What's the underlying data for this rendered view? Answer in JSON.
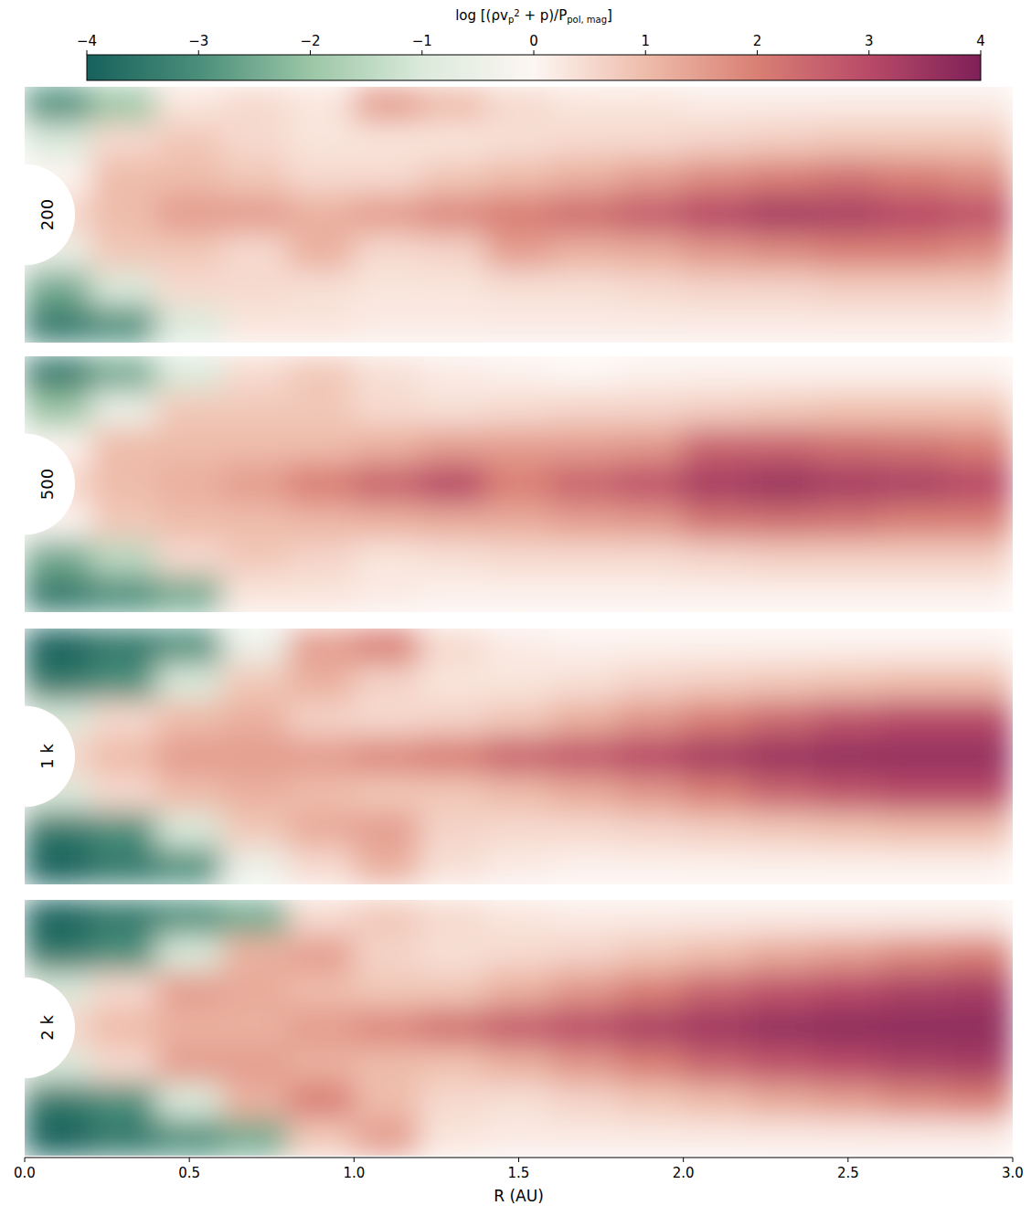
{
  "chart_data": {
    "type": "heatmap",
    "xlabel": "R (AU)",
    "xlim": [
      0,
      3
    ],
    "ylim": [
      -0.39,
      0.39
    ],
    "xticks": [
      {
        "value": 0,
        "label": "0.0"
      },
      {
        "value": 0.5,
        "label": "0.5"
      },
      {
        "value": 1,
        "label": "1.0"
      },
      {
        "value": 1.5,
        "label": "1.5"
      },
      {
        "value": 2,
        "label": "2.0"
      },
      {
        "value": 2.5,
        "label": "2.5"
      },
      {
        "value": 3,
        "label": "3.0"
      }
    ],
    "tick_labels": "x",
    "x_edges": [
      0,
      0.2,
      0.4,
      0.6,
      0.8,
      1.0,
      1.2,
      1.4,
      1.6,
      1.8,
      2.0,
      2.2,
      2.4,
      2.6,
      2.8,
      3.0
    ],
    "y_edges": [
      0.39,
      0.28,
      0.17,
      0.06,
      -0.06,
      -0.17,
      -0.28,
      -0.39
    ],
    "colorbar": {
      "label": [
        "log [(ρv",
        "p",
        "2",
        " + p)/P",
        "pol, mag",
        "]"
      ],
      "range": [
        -4,
        4
      ],
      "ticks": [
        {
          "value": -4,
          "label": "−4"
        },
        {
          "value": -3,
          "label": "−3"
        },
        {
          "value": -2,
          "label": "−2"
        },
        {
          "value": -1,
          "label": "−1"
        },
        0,
        1,
        2,
        3,
        4
      ]
    },
    "panels": [
      {
        "label": "200",
        "values": [
          [
            -3,
            -2,
            0.3,
            0.5,
            0.3,
            1.5,
            1,
            0.5,
            0.3,
            0.3,
            0.2,
            0.2,
            0.2,
            0.2,
            0.2
          ],
          [
            -1,
            0.5,
            0.8,
            0.5,
            0.3,
            0.3,
            0.3,
            0.4,
            0.5,
            0.5,
            0.6,
            0.7,
            0.8,
            0.8,
            0.8
          ],
          [
            0,
            1.0,
            1.0,
            0.8,
            0.5,
            0.5,
            0.8,
            1.0,
            1.2,
            1.5,
            1.8,
            2.0,
            2.2,
            2.0,
            1.8
          ],
          [
            0.5,
            1.0,
            1.5,
            1.5,
            1.2,
            1.5,
            1.8,
            2.0,
            2.3,
            2.6,
            3.0,
            3.3,
            3.2,
            3.0,
            2.8
          ],
          [
            -0.5,
            0.8,
            0.8,
            0.5,
            1.2,
            0.5,
            0.6,
            1.5,
            1.2,
            1.3,
            1.6,
            1.8,
            2.0,
            2.0,
            1.8
          ],
          [
            -2.5,
            -1,
            0.5,
            0.5,
            0.4,
            0.3,
            0.3,
            0.4,
            0.4,
            0.5,
            0.6,
            0.6,
            0.7,
            0.7,
            0.7
          ],
          [
            -3.5,
            -3,
            -1,
            0.3,
            0.3,
            0.2,
            0.2,
            0.2,
            0.2,
            0.2,
            0.2,
            0.2,
            0.2,
            0.2,
            0.2
          ]
        ]
      },
      {
        "label": "500",
        "values": [
          [
            -3.5,
            -2.5,
            -1,
            0.5,
            0.8,
            0.4,
            0.2,
            0.1,
            0,
            0.1,
            0.1,
            0.1,
            0.1,
            0.1,
            0.1
          ],
          [
            -2,
            -0.5,
            0.8,
            0.8,
            0.8,
            0.5,
            0.4,
            0.5,
            0.6,
            0.6,
            0.7,
            0.8,
            0.9,
            0.9,
            0.9
          ],
          [
            0,
            1,
            1,
            1,
            1,
            1.2,
            1.5,
            1.5,
            1.5,
            1.6,
            2.5,
            2.5,
            2.3,
            2.2,
            2.0
          ],
          [
            0.5,
            1,
            1.2,
            1.5,
            2,
            2.5,
            3.0,
            2.0,
            2.5,
            2.8,
            3.3,
            3.5,
            3.3,
            3.2,
            3.0
          ],
          [
            0,
            0.8,
            1,
            1,
            1.1,
            1.2,
            1.3,
            1.3,
            1.5,
            1.6,
            2.2,
            2.3,
            2.2,
            2.0,
            2.0
          ],
          [
            -2.5,
            -1.5,
            0.5,
            0.8,
            0.6,
            0.3,
            0.4,
            0.5,
            0.5,
            0.5,
            0.6,
            0.7,
            0.7,
            0.7,
            0.7
          ],
          [
            -3.5,
            -3,
            -2.5,
            0.3,
            0.3,
            0.2,
            0.1,
            0.1,
            0.1,
            0.1,
            0.1,
            0.1,
            0.1,
            0.1,
            0.1
          ]
        ]
      },
      {
        "label": "1 k",
        "values": [
          [
            -4,
            -3.5,
            -3,
            -0.5,
            1.5,
            2.0,
            0.5,
            0.2,
            0.1,
            0.1,
            0.1,
            0.1,
            0.1,
            0.1,
            0.1
          ],
          [
            -3.5,
            -3,
            -1,
            0.8,
            1.2,
            0.6,
            0.3,
            0.3,
            0.4,
            0.6,
            0.7,
            0.8,
            0.9,
            1.0,
            1.0
          ],
          [
            -1,
            0.5,
            1,
            1.2,
            0.6,
            0.5,
            0.6,
            0.8,
            1.2,
            1.6,
            2.0,
            2.4,
            2.8,
            3.0,
            3.0
          ],
          [
            0.5,
            1,
            1.5,
            1.5,
            1.5,
            1.8,
            2.0,
            2.5,
            2.7,
            3.0,
            3.3,
            3.5,
            3.6,
            3.6,
            3.6
          ],
          [
            -1,
            0.5,
            1,
            1.2,
            1,
            0.8,
            0.8,
            1.0,
            1.3,
            1.6,
            2.0,
            2.5,
            2.8,
            3.0,
            3.0
          ],
          [
            -3.5,
            -3,
            -1,
            0.8,
            1.3,
            1.5,
            0.6,
            0.5,
            0.5,
            0.6,
            0.7,
            0.8,
            0.9,
            1.0,
            1.0
          ],
          [
            -4,
            -3.5,
            -3,
            -0.5,
            0.5,
            1.2,
            0.4,
            0.2,
            0.1,
            0.1,
            0.1,
            0.1,
            0.1,
            0.1,
            0.1
          ]
        ]
      },
      {
        "label": "2 k",
        "values": [
          [
            -4,
            -3.5,
            -3,
            -2.5,
            0.5,
            0.8,
            0.5,
            0.3,
            0.2,
            0.2,
            0.2,
            0.2,
            0.2,
            0.2,
            0.2
          ],
          [
            -3.5,
            -3,
            -1,
            1.2,
            1.5,
            0.6,
            0.4,
            0.5,
            0.6,
            0.8,
            1.0,
            1.3,
            1.5,
            1.8,
            2.0
          ],
          [
            -1,
            0.5,
            1.5,
            1.3,
            1.0,
            0.8,
            0.8,
            1.2,
            1.6,
            2.0,
            2.5,
            2.8,
            3.0,
            3.2,
            3.3
          ],
          [
            0.5,
            1,
            1.2,
            1.2,
            1.5,
            1.8,
            2.2,
            2.6,
            2.9,
            3.2,
            3.4,
            3.6,
            3.7,
            3.7,
            3.7
          ],
          [
            -1,
            0.5,
            1.5,
            1.5,
            1.2,
            1,
            0.9,
            1.2,
            1.6,
            2.0,
            2.5,
            2.8,
            3.0,
            3.2,
            3.3
          ],
          [
            -3.5,
            -3,
            -1,
            1.2,
            2.0,
            1.0,
            0.5,
            0.4,
            0.6,
            0.8,
            1.0,
            1.3,
            1.5,
            1.8,
            2.0
          ],
          [
            -4,
            -3.5,
            -3,
            -2.5,
            0.8,
            1.5,
            0.3,
            0.2,
            0.2,
            0.2,
            0.2,
            0.2,
            0.2,
            0.2,
            0.2
          ]
        ]
      }
    ]
  }
}
